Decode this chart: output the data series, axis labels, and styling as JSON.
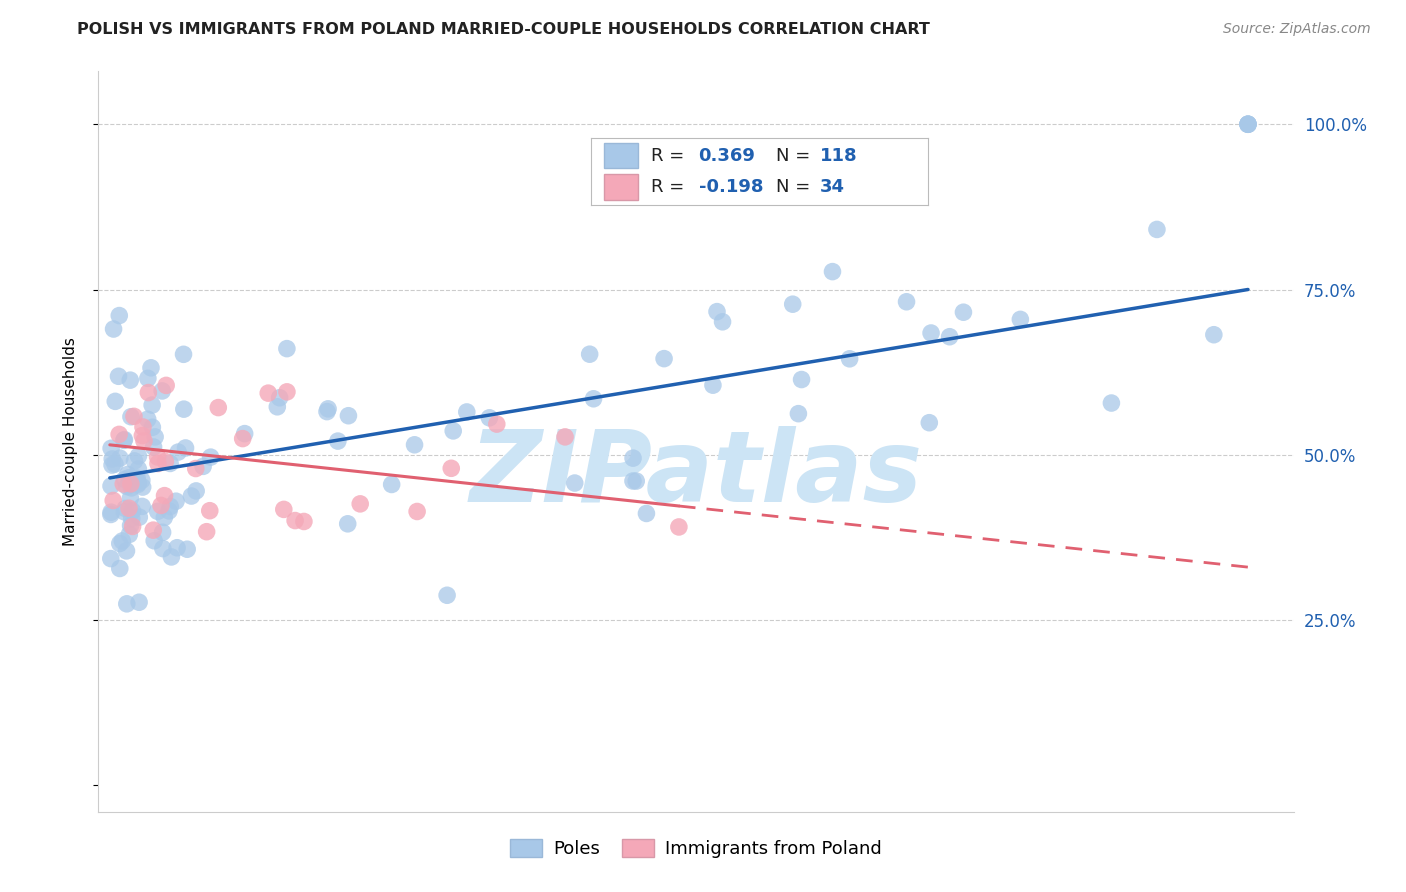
{
  "title": "POLISH VS IMMIGRANTS FROM POLAND MARRIED-COUPLE HOUSEHOLDS CORRELATION CHART",
  "source": "Source: ZipAtlas.com",
  "ylabel": "Married-couple Households",
  "legend_poles_R": "0.369",
  "legend_poles_N": "118",
  "legend_immigrants_R": "-0.198",
  "legend_immigrants_N": "34",
  "poles_color": "#a8c8e8",
  "immigrants_color": "#f4a8b8",
  "trendline_poles_color": "#2060b0",
  "trendline_immigrants_color": "#e06070",
  "watermark": "ZIPatlas",
  "watermark_color": "#cce4f5",
  "title_fontsize": 11.5,
  "source_fontsize": 10,
  "ylabel_fontsize": 11,
  "tick_fontsize": 12,
  "legend_fontsize": 13,
  "poles_trend_x0": 0.0,
  "poles_trend_y0": 0.465,
  "poles_trend_x1": 1.0,
  "poles_trend_y1": 0.75,
  "imm_trend_x0": 0.0,
  "imm_trend_y0": 0.515,
  "imm_trend_x1": 1.0,
  "imm_trend_y1": 0.33,
  "xlim_min": -0.01,
  "xlim_max": 1.04,
  "ylim_min": -0.04,
  "ylim_max": 1.08
}
